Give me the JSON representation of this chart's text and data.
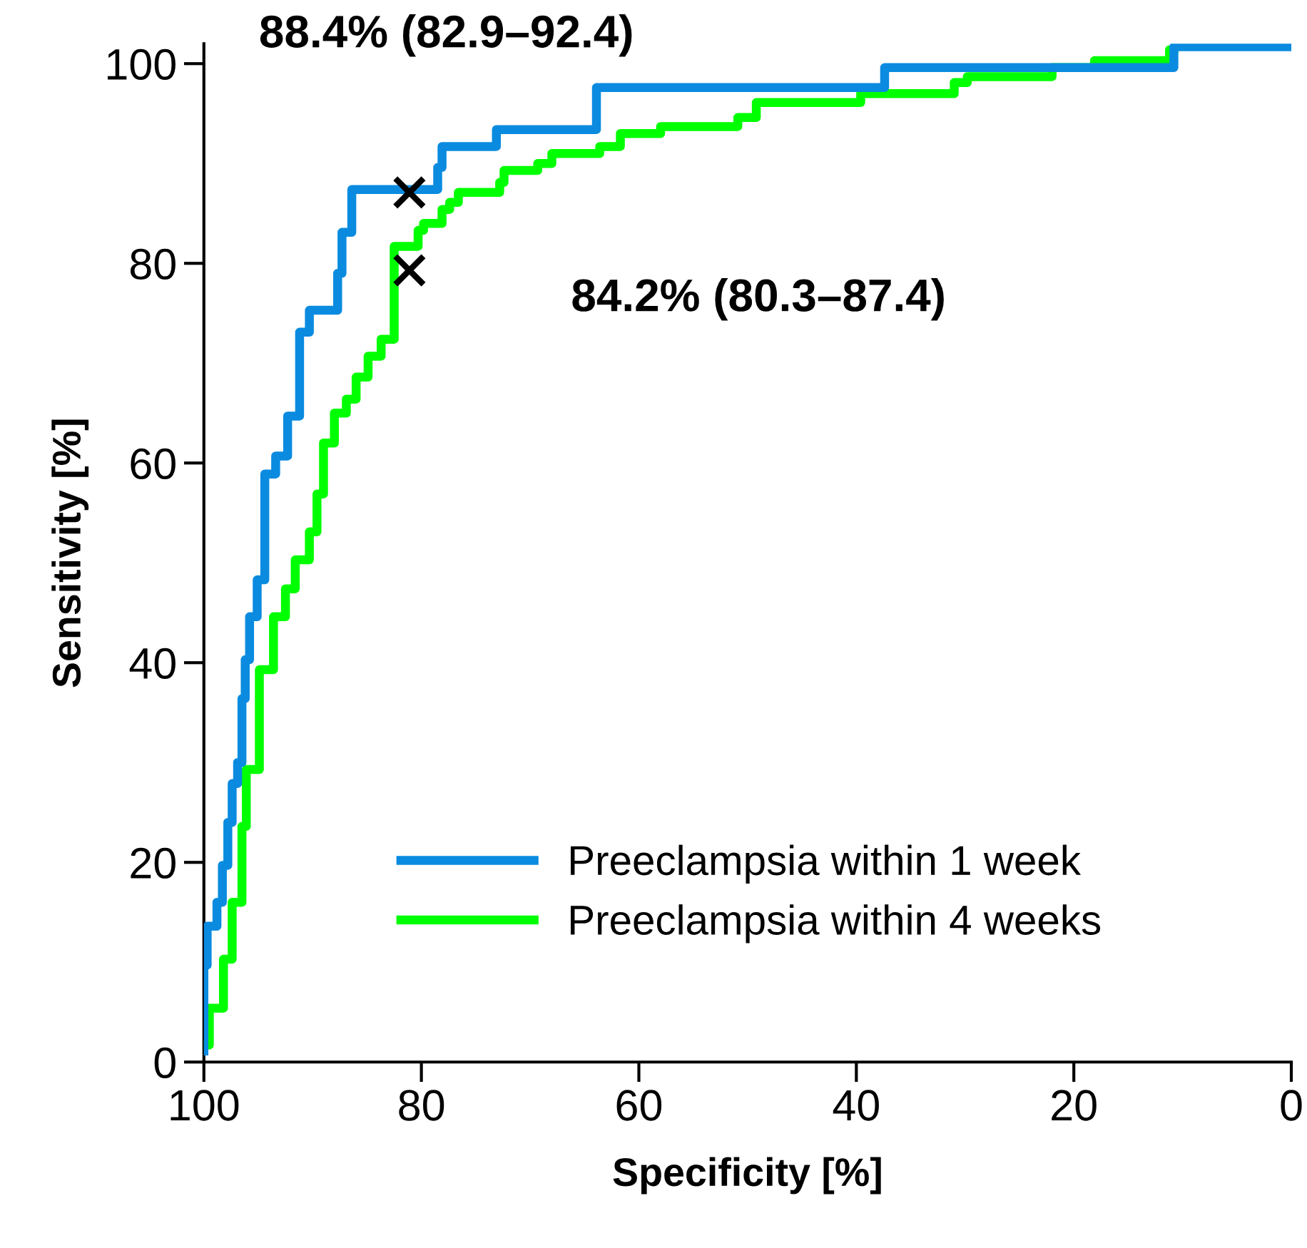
{
  "chart_data": {
    "type": "line",
    "xlabel": "Specificity [%]",
    "ylabel": "Sensitivity [%]",
    "xlim": [
      100,
      0
    ],
    "xticks": [
      100,
      80,
      60,
      40,
      20,
      0
    ],
    "ylim": [
      0,
      102
    ],
    "yticks": [
      0,
      20,
      40,
      60,
      80,
      100
    ],
    "grid": false,
    "legend": "bottom right",
    "marker": "none",
    "line_style": "solid",
    "series": [
      {
        "name": "Preeclampsia within 1 week",
        "color": "#0a8be0",
        "x": [
          100,
          100,
          99.7,
          99.7,
          98.8,
          98.8,
          98.3,
          98.3,
          97.8,
          97.8,
          97.4,
          97.4,
          96.9,
          96.9,
          96.5,
          96.5,
          96.2,
          96.2,
          95.8,
          95.8,
          95.1,
          95.1,
          94.4,
          94.4,
          93.4,
          93.4,
          92.3,
          92.3,
          91.2,
          91.2,
          90.3,
          90.3,
          87.7,
          87.7,
          87.3,
          87.3,
          86.4,
          86.4,
          78.5,
          78.5,
          78.1,
          78.1,
          73.1,
          73.1,
          63.9,
          63.9,
          37.4,
          37.4,
          10.8,
          10.8,
          0
        ],
        "values": [
          1.1,
          9.7,
          9.7,
          13.6,
          13.6,
          16,
          16,
          19.7,
          19.7,
          24,
          24,
          27.9,
          27.9,
          30,
          30,
          36.4,
          36.4,
          40.3,
          40.3,
          44.6,
          44.6,
          48.3,
          48.3,
          58.9,
          58.9,
          60.7,
          60.7,
          64.7,
          64.7,
          73.1,
          73.1,
          75.3,
          75.3,
          79,
          79,
          83.1,
          83.1,
          87.4,
          87.4,
          89.6,
          89.6,
          91.7,
          91.7,
          93.4,
          93.4,
          97.6,
          97.6,
          99.6,
          99.6,
          101.7,
          101.7
        ]
      },
      {
        "name": "Preeclampsia within 4 weeks",
        "color": "#00ff00",
        "x": [
          100,
          99.5,
          99.5,
          98.2,
          98.2,
          97.4,
          97.4,
          96.5,
          96.5,
          96.1,
          96.1,
          94.9,
          94.9,
          93.6,
          93.6,
          92.5,
          92.5,
          91.6,
          91.6,
          90.3,
          90.3,
          89.6,
          89.6,
          89,
          89,
          88,
          88,
          86.9,
          86.9,
          86,
          86,
          84.9,
          84.9,
          83.7,
          83.7,
          82.5,
          82.5,
          80.3,
          80.3,
          79.8,
          79.8,
          78.1,
          78.1,
          77.4,
          77.4,
          76.6,
          76.6,
          72.8,
          72.8,
          72.4,
          72.4,
          69.3,
          69.3,
          68,
          68,
          63.6,
          63.6,
          61.7,
          61.7,
          58,
          58,
          50.9,
          50.9,
          49.2,
          49.2,
          39.6,
          39.6,
          31,
          31,
          29.8,
          29.8,
          22,
          22,
          18.1,
          18.1,
          11.2,
          11.2,
          10.8
        ],
        "values": [
          1.7,
          1.7,
          5.4,
          5.4,
          10.3,
          10.3,
          16,
          16,
          23.6,
          23.6,
          29.3,
          29.3,
          39.3,
          39.3,
          44.6,
          44.6,
          47.4,
          47.4,
          50.3,
          50.3,
          53.1,
          53.1,
          56.9,
          56.9,
          62,
          62,
          65,
          65,
          66.4,
          66.4,
          68.6,
          68.6,
          70.7,
          70.7,
          72.4,
          72.4,
          81.7,
          81.7,
          83.3,
          83.3,
          84,
          84,
          85.4,
          85.4,
          86.1,
          86.1,
          87.1,
          87.1,
          88.1,
          88.1,
          89.3,
          89.3,
          90,
          90,
          91,
          91,
          91.7,
          91.7,
          93,
          93,
          93.7,
          93.7,
          94.6,
          94.6,
          96.1,
          96.1,
          97,
          97,
          98.1,
          98.1,
          98.7,
          98.7,
          99.6,
          99.6,
          100.3,
          100.3,
          101.4,
          101.4
        ]
      },
      {
        "type": "scatter",
        "marker": "cross",
        "color": "#000000",
        "x": [
          81.1
        ],
        "values": [
          87.1
        ]
      },
      {
        "type": "scatter",
        "marker": "cross",
        "color": "#000000",
        "x": [
          81.1
        ],
        "values": [
          79.3
        ]
      }
    ],
    "annotations": [
      "88.4% (82.9–92.4)",
      "84.2% (80.3–87.4)"
    ]
  }
}
